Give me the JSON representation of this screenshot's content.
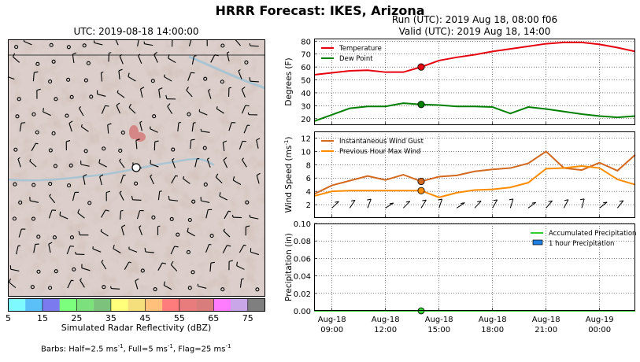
{
  "figure": {
    "suptitle": "HRRR Forecast: IKES, Arizona",
    "map_title": "UTC: 2019-08-18 14:00:00",
    "run_line1": "Run (UTC): 2019 Aug 18, 08:00 f06",
    "run_line2": "Valid (UTC): 2019 Aug 18, 14:00",
    "barbs_note_prefix": "Barbs: Half=2.5 ms",
    "barbs_note_mid1": ", Full=5 ms",
    "barbs_note_mid2": ", Flag=25 ms",
    "barbs_exp": "-1"
  },
  "colorbar": {
    "label": "Simulated Radar Reflectivity (dBZ)",
    "colors": [
      "#7df9ff",
      "#5bc0f8",
      "#7b7bef",
      "#7cff7c",
      "#7ce07c",
      "#7cc27c",
      "#ffff7c",
      "#f5de7c",
      "#ffc07c",
      "#ff7c7c",
      "#e87c7c",
      "#d87c7c",
      "#ff7cff",
      "#c9a6e8",
      "#7f7f7f"
    ],
    "ticks": [
      "5",
      "15",
      "25",
      "35",
      "45",
      "55",
      "65",
      "75"
    ]
  },
  "map": {
    "colors": {
      "terrain": "#dccfcb",
      "ridge": "#b49d97",
      "water": "#a9c4d2",
      "echo": "#d47a7a"
    }
  },
  "chart_data": [
    {
      "type": "line",
      "panel": "temperature",
      "ylabel": "Degrees (F)",
      "ylim": [
        15,
        82
      ],
      "yticks": [
        "20",
        "30",
        "40",
        "50",
        "60",
        "70",
        "80"
      ],
      "grid": true,
      "legend_position": "top-left",
      "x": [
        "2019-08-18 08:00",
        "2019-08-18 09:00",
        "2019-08-18 10:00",
        "2019-08-18 11:00",
        "2019-08-18 12:00",
        "2019-08-18 13:00",
        "2019-08-18 14:00",
        "2019-08-18 15:00",
        "2019-08-18 16:00",
        "2019-08-18 17:00",
        "2019-08-18 18:00",
        "2019-08-18 19:00",
        "2019-08-18 20:00",
        "2019-08-18 21:00",
        "2019-08-18 22:00",
        "2019-08-18 23:00",
        "2019-08-19 00:00",
        "2019-08-19 01:00",
        "2019-08-19 02:00"
      ],
      "series": [
        {
          "name": "Temperature",
          "color": "#e6000f",
          "values": [
            54,
            55.5,
            57,
            57.5,
            56,
            56,
            60,
            65,
            67.5,
            69.5,
            72,
            74,
            76,
            78,
            79,
            79,
            77.5,
            75,
            72
          ]
        },
        {
          "name": "Dew Point",
          "color": "#008000",
          "values": [
            18,
            23,
            28,
            29.5,
            29.5,
            32,
            31,
            30.5,
            29.5,
            29.5,
            29,
            24,
            29,
            27.5,
            25.5,
            23.5,
            22,
            21,
            22
          ]
        }
      ],
      "marker_index": 6
    },
    {
      "type": "line",
      "panel": "wind",
      "ylabel": "Wind Speed (ms",
      "ylabel_exp": "-1",
      "ylabel_close": ")",
      "ylim": [
        0,
        13
      ],
      "yticks": [
        "2",
        "4",
        "6",
        "8",
        "10",
        "12"
      ],
      "grid": true,
      "legend_position": "top-left",
      "x": [
        "2019-08-18 08:00",
        "2019-08-18 09:00",
        "2019-08-18 10:00",
        "2019-08-18 11:00",
        "2019-08-18 12:00",
        "2019-08-18 13:00",
        "2019-08-18 14:00",
        "2019-08-18 15:00",
        "2019-08-18 16:00",
        "2019-08-18 17:00",
        "2019-08-18 18:00",
        "2019-08-18 19:00",
        "2019-08-18 20:00",
        "2019-08-18 21:00",
        "2019-08-18 22:00",
        "2019-08-18 23:00",
        "2019-08-19 00:00",
        "2019-08-19 01:00",
        "2019-08-19 02:00"
      ],
      "series": [
        {
          "name": "Instantaneous Wind Gust",
          "color": "#d2691e",
          "values": [
            3.6,
            4.9,
            5.6,
            6.3,
            5.7,
            6.5,
            5.5,
            6.2,
            6.4,
            7.0,
            7.3,
            7.5,
            8.2,
            10.0,
            7.5,
            7.2,
            8.3,
            7.1,
            9.5
          ]
        },
        {
          "name": "Previous Hour Max Wind",
          "color": "#ff8c00",
          "values": [
            3.3,
            4.0,
            4.1,
            4.1,
            4.1,
            4.1,
            4.1,
            3.1,
            3.8,
            4.2,
            4.3,
            4.6,
            5.3,
            7.4,
            7.5,
            7.8,
            7.5,
            5.8,
            5.0
          ]
        }
      ],
      "marker_index": 6
    },
    {
      "type": "bar",
      "panel": "precipitation",
      "ylabel": "Precipitation (in)",
      "ylim": [
        0,
        0.1
      ],
      "yticks": [
        "0.00",
        "0.02",
        "0.04",
        "0.06",
        "0.08",
        "0.10"
      ],
      "grid": true,
      "legend_position": "top-right",
      "xticks": [
        [
          "Aug-18",
          "09:00"
        ],
        [
          "Aug-18",
          "12:00"
        ],
        [
          "Aug-18",
          "15:00"
        ],
        [
          "Aug-18",
          "18:00"
        ],
        [
          "Aug-18",
          "21:00"
        ],
        [
          "Aug-19",
          "00:00"
        ]
      ],
      "x": [
        "2019-08-18 08:00",
        "2019-08-18 09:00",
        "2019-08-18 10:00",
        "2019-08-18 11:00",
        "2019-08-18 12:00",
        "2019-08-18 13:00",
        "2019-08-18 14:00",
        "2019-08-18 15:00",
        "2019-08-18 16:00",
        "2019-08-18 17:00",
        "2019-08-18 18:00",
        "2019-08-18 19:00",
        "2019-08-18 20:00",
        "2019-08-18 21:00",
        "2019-08-18 22:00",
        "2019-08-18 23:00",
        "2019-08-19 00:00",
        "2019-08-19 01:00",
        "2019-08-19 02:00"
      ],
      "series": [
        {
          "name": "Accumulated Precipitation",
          "color": "#33cc33",
          "values": [
            0,
            0,
            0,
            0,
            0,
            0,
            0,
            0,
            0,
            0,
            0,
            0,
            0,
            0,
            0,
            0,
            0,
            0,
            0
          ]
        },
        {
          "name": "1 hour Precipitation",
          "color": "#1e7fe0",
          "values": [
            0,
            0,
            0,
            0,
            0,
            0,
            0,
            0,
            0,
            0,
            0,
            0,
            0,
            0,
            0,
            0,
            0,
            0,
            0
          ]
        }
      ],
      "marker_index": 6
    }
  ]
}
